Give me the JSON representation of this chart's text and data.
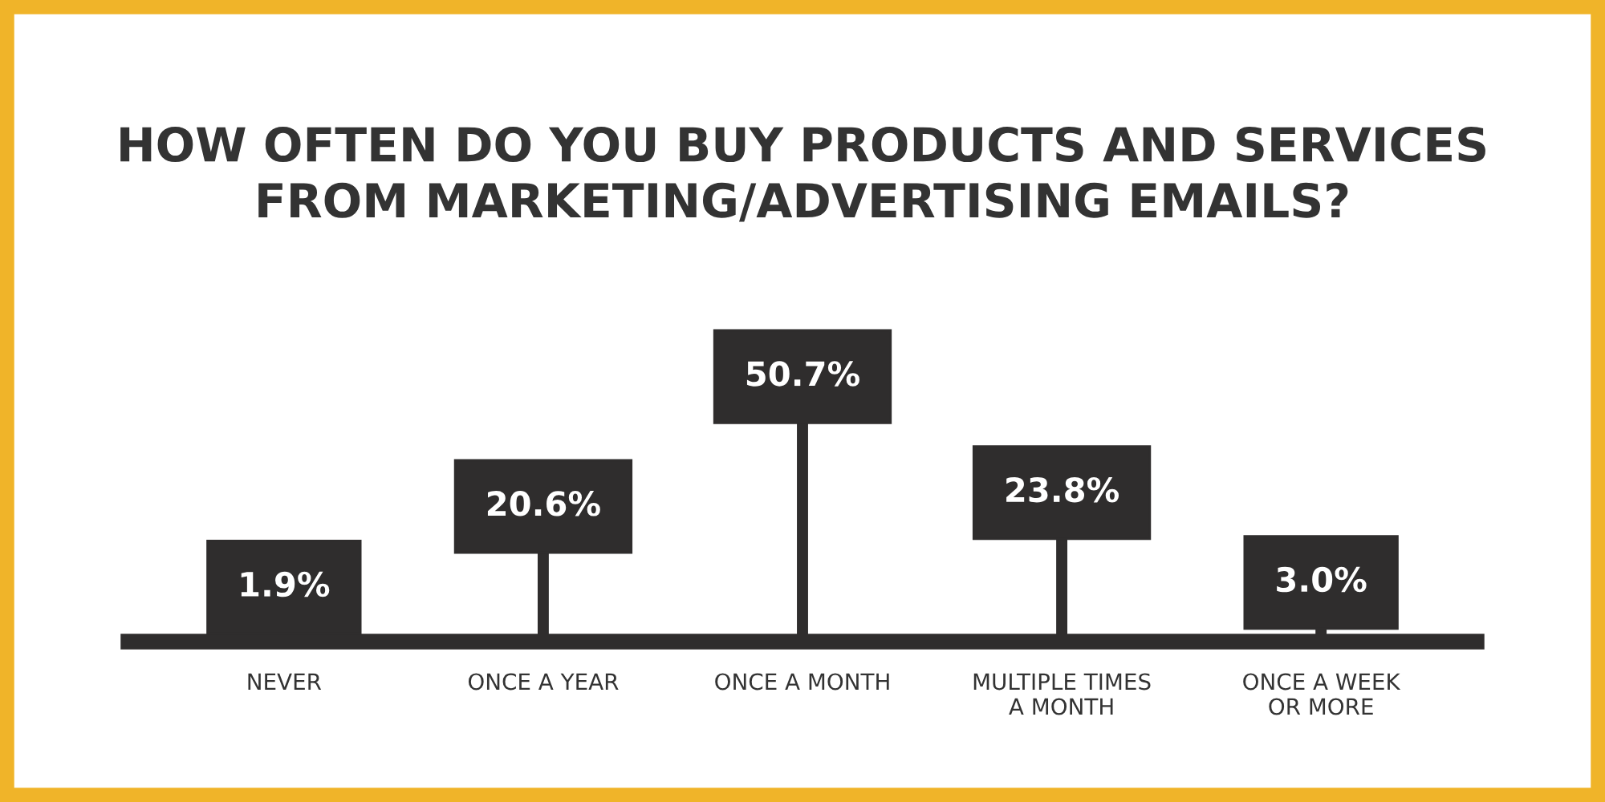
{
  "chart_data": {
    "type": "other",
    "title": "HOW OFTEN DO YOU BUY PRODUCTS AND SERVICES\nFROM MARKETING/ADVERTISING EMAILS?",
    "categories": [
      "NEVER",
      "ONCE A YEAR",
      "ONCE A MONTH",
      "MULTIPLE TIMES\nA MONTH",
      "ONCE A WEEK\nOR MORE"
    ],
    "values": [
      1.9,
      20.6,
      50.7,
      23.8,
      3.0
    ],
    "value_labels": [
      "1.9%",
      "20.6%",
      "50.7%",
      "23.8%",
      "3.0%"
    ],
    "color": "#2f2d2d"
  }
}
